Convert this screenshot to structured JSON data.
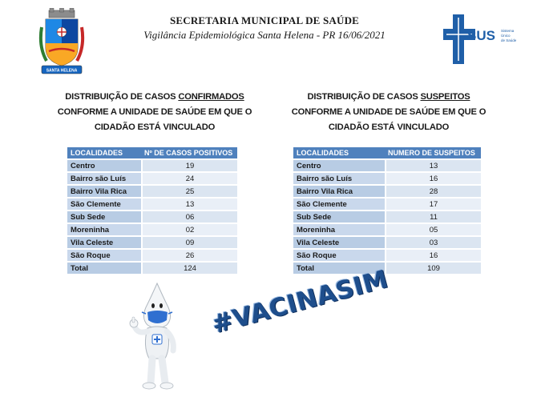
{
  "header": {
    "title": "SECRETARIA MUNICIPAL DE SAÚDE",
    "subtitle": "Vigilância Epidemiológica Santa Helena - PR 16/06/2021",
    "crest_banner": "SANTA HELENA",
    "sus_logo": {
      "text": "SUS",
      "caption_lines": [
        "Sistema",
        "Único",
        "de Saúde"
      ]
    }
  },
  "confirmed": {
    "heading_before": "DISTRIBUIÇÃO DE CASOS ",
    "heading_emph": "CONFIRMADOS",
    "heading_line2": "CONFORME A UNIDADE DE SAÚDE EM QUE O",
    "heading_line3": "CIDADÃO  ESTÁ VINCULADO",
    "col1": "LOCALIDADES",
    "col2": "Nº DE CASOS  POSITIVOS",
    "rows": [
      {
        "loc": "Centro",
        "val": "19"
      },
      {
        "loc": "Bairro são Luís",
        "val": "24"
      },
      {
        "loc": "Bairro Vila Rica",
        "val": "25"
      },
      {
        "loc": "São Clemente",
        "val": "13"
      },
      {
        "loc": "Sub Sede",
        "val": "06"
      },
      {
        "loc": "Moreninha",
        "val": "02"
      },
      {
        "loc": "Vila Celeste",
        "val": "09"
      },
      {
        "loc": "São Roque",
        "val": "26"
      },
      {
        "loc": "Total",
        "val": "124"
      }
    ]
  },
  "suspected": {
    "heading_before": "DISTRIBUIÇÃO DE CASOS ",
    "heading_emph": "SUSPEITOS",
    "heading_line2": "CONFORME A UNIDADE DE SAÚDE EM QUE O",
    "heading_line3": "CIDADÃO  ESTÁ VINCULADO",
    "col1": "LOCALIDADES",
    "col2": "NUMERO  DE  SUSPEITOS",
    "rows": [
      {
        "loc": "Centro",
        "val": "13"
      },
      {
        "loc": "Bairro são Luís",
        "val": "16"
      },
      {
        "loc": "Bairro Vila Rica",
        "val": "28"
      },
      {
        "loc": "São Clemente",
        "val": "17"
      },
      {
        "loc": "Sub Sede",
        "val": "11"
      },
      {
        "loc": "Moreninha",
        "val": "05"
      },
      {
        "loc": "Vila Celeste",
        "val": "03"
      },
      {
        "loc": "São Roque",
        "val": "16"
      },
      {
        "loc": "Total",
        "val": "109"
      }
    ]
  },
  "hashtag": "#VACINASIM",
  "colors": {
    "table_header": "#4f81bd",
    "table_loc": "#b8cce4",
    "table_num": "#dbe5f1",
    "hashtag": "#1e4e8c",
    "sus_blue": "#1f5fa8"
  }
}
